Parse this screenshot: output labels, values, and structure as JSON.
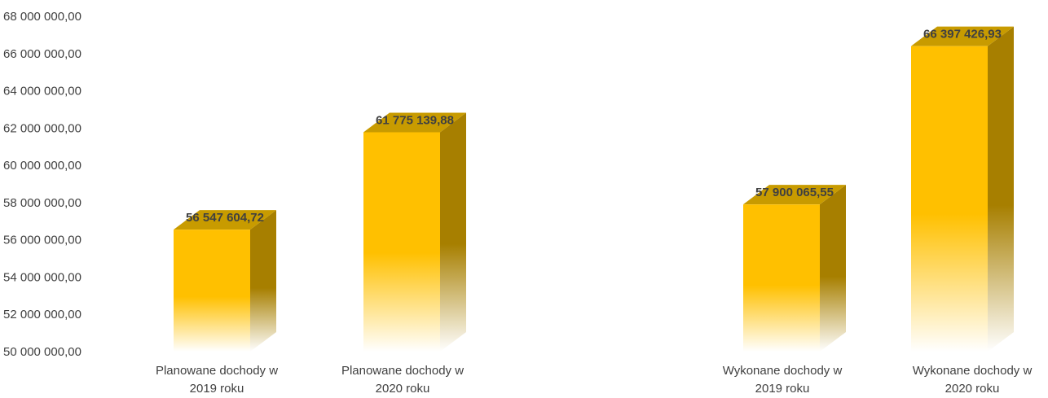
{
  "chart_data": {
    "type": "bar",
    "title": "",
    "xlabel": "",
    "ylabel": "",
    "ylim": [
      50000000,
      68000000
    ],
    "y_ticks": [
      {
        "value": 50000000,
        "label": "50 000 000,00"
      },
      {
        "value": 52000000,
        "label": "52 000 000,00"
      },
      {
        "value": 54000000,
        "label": "54 000 000,00"
      },
      {
        "value": 56000000,
        "label": "56 000 000,00"
      },
      {
        "value": 58000000,
        "label": "58 000 000,00"
      },
      {
        "value": 60000000,
        "label": "60 000 000,00"
      },
      {
        "value": 62000000,
        "label": "62 000 000,00"
      },
      {
        "value": 64000000,
        "label": "64 000 000,00"
      },
      {
        "value": 66000000,
        "label": "66 000 000,00"
      },
      {
        "value": 68000000,
        "label": "68 000 000,00"
      }
    ],
    "grid": false,
    "style": "3d-column",
    "bars": [
      {
        "category": [
          "Planowane dochody w",
          "2019 roku"
        ],
        "value": 56547604.72,
        "label": "56 547 604,72"
      },
      {
        "category": [
          "Planowane dochody w",
          "2020 roku"
        ],
        "value": 61775139.88,
        "label": "61 775 139,88"
      },
      {
        "category": [
          "Wykonane dochody w",
          "2019 roku"
        ],
        "value": 57900065.55,
        "label": "57 900 065,55"
      },
      {
        "category": [
          "Wykonane dochody w",
          "2020 roku"
        ],
        "value": 66397426.93,
        "label": "66 397 426,93"
      }
    ],
    "colors": {
      "front_top": "#FFC000",
      "front_bottom": "#FFFFFF",
      "top_face": "#C89B00",
      "side_face": "#A77F00",
      "text": "#404040"
    }
  }
}
